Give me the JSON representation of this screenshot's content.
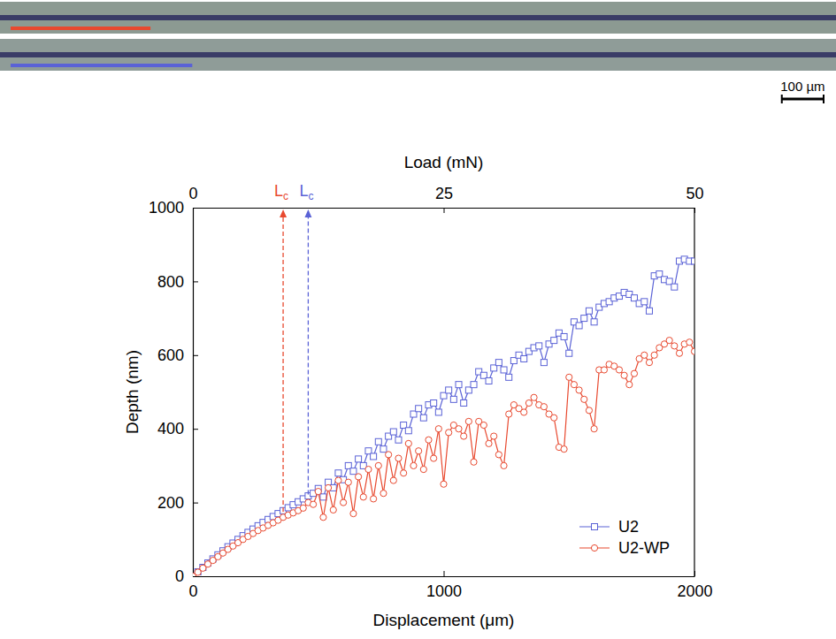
{
  "chart_data": {
    "type": "line",
    "xlabel": "Displacement (μm)",
    "ylabel": "Depth (nm)",
    "x2label": "Load (mN)",
    "xlim": [
      0,
      2000
    ],
    "xticks": [
      0,
      1000,
      2000
    ],
    "x2lim": [
      0,
      50
    ],
    "x2ticks": [
      0,
      25,
      50
    ],
    "ylim": [
      0,
      1000
    ],
    "yticks": [
      0,
      200,
      400,
      600,
      800,
      1000
    ],
    "grid": false,
    "legend": "lower right",
    "x": [
      0,
      20,
      40,
      60,
      80,
      100,
      120,
      140,
      160,
      180,
      200,
      220,
      240,
      260,
      280,
      300,
      320,
      340,
      360,
      380,
      400,
      420,
      440,
      460,
      480,
      500,
      520,
      540,
      560,
      580,
      600,
      620,
      640,
      660,
      680,
      700,
      720,
      740,
      760,
      780,
      800,
      820,
      840,
      860,
      880,
      900,
      920,
      940,
      960,
      980,
      1000,
      1020,
      1040,
      1060,
      1080,
      1100,
      1120,
      1140,
      1160,
      1180,
      1200,
      1220,
      1240,
      1260,
      1280,
      1300,
      1320,
      1340,
      1360,
      1380,
      1400,
      1420,
      1440,
      1460,
      1480,
      1500,
      1520,
      1540,
      1560,
      1580,
      1600,
      1620,
      1640,
      1660,
      1680,
      1700,
      1720,
      1740,
      1760,
      1780,
      1800,
      1820,
      1840,
      1860,
      1880,
      1900,
      1920,
      1940,
      1960,
      1980,
      2000
    ],
    "series": [
      {
        "name": "U2",
        "color": "#5a62d6",
        "marker": "square",
        "line_style": "solid",
        "values": [
          0,
          12,
          24,
          36,
          47,
          58,
          69,
          80,
          90,
          100,
          110,
          119,
          128,
          137,
          146,
          154,
          162,
          170,
          178,
          186,
          194,
          202,
          210,
          218,
          225,
          238,
          215,
          255,
          240,
          280,
          262,
          300,
          285,
          318,
          300,
          340,
          325,
          365,
          345,
          380,
          392,
          370,
          410,
          395,
          440,
          455,
          430,
          465,
          470,
          445,
          490,
          505,
          480,
          520,
          470,
          505,
          520,
          555,
          545,
          530,
          565,
          580,
          560,
          540,
          585,
          600,
          590,
          610,
          620,
          625,
          580,
          630,
          640,
          660,
          650,
          605,
          690,
          680,
          700,
          720,
          690,
          730,
          740,
          745,
          755,
          760,
          770,
          765,
          755,
          740,
          745,
          720,
          815,
          820,
          805,
          800,
          785,
          855,
          860,
          855,
          855
        ]
      },
      {
        "name": "U2-WP",
        "color": "#e8492f",
        "marker": "circle",
        "line_style": "solid",
        "values": [
          0,
          11,
          22,
          33,
          43,
          53,
          63,
          73,
          82,
          91,
          100,
          108,
          116,
          124,
          131,
          138,
          145,
          152,
          160,
          166,
          172,
          178,
          185,
          200,
          195,
          230,
          160,
          240,
          180,
          260,
          200,
          255,
          170,
          270,
          215,
          290,
          210,
          300,
          225,
          330,
          260,
          320,
          280,
          360,
          300,
          340,
          290,
          370,
          320,
          400,
          250,
          390,
          410,
          400,
          380,
          420,
          310,
          420,
          410,
          360,
          380,
          330,
          300,
          440,
          465,
          455,
          445,
          470,
          485,
          465,
          460,
          440,
          430,
          350,
          345,
          540,
          520,
          505,
          480,
          450,
          400,
          560,
          560,
          575,
          570,
          560,
          545,
          520,
          550,
          590,
          600,
          580,
          600,
          620,
          630,
          640,
          625,
          605,
          630,
          635,
          610
        ]
      }
    ],
    "annotations": [
      {
        "text": "L",
        "subscript": "c",
        "x": 360,
        "y_from": 175,
        "color": "#e8492f"
      },
      {
        "text": "L",
        "subscript": "c",
        "x": 460,
        "y_from": 222,
        "color": "#5a62d6"
      }
    ]
  },
  "scale_bar": {
    "label": "100 µm",
    "length": 100
  }
}
